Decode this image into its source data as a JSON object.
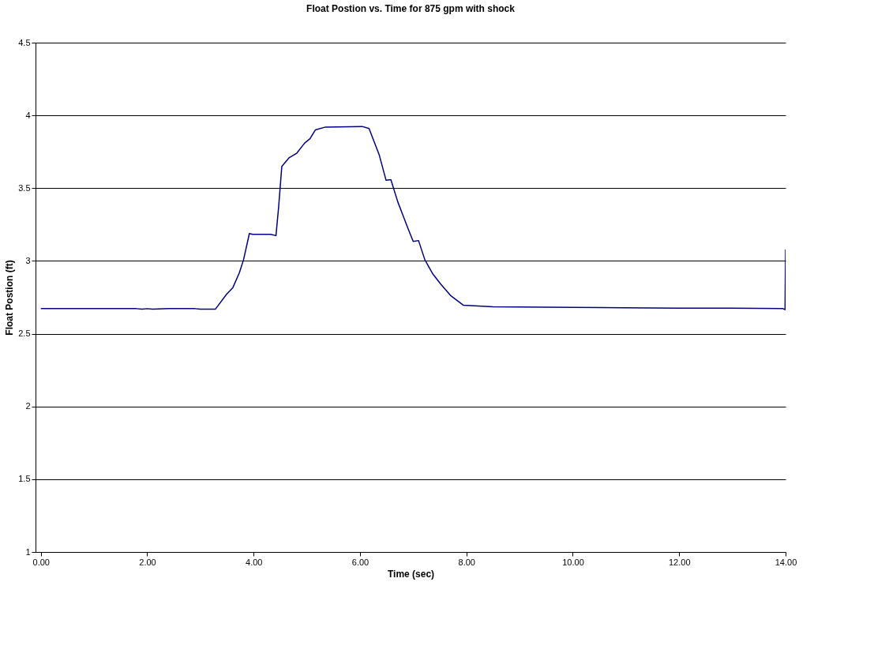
{
  "chart_data": {
    "type": "line",
    "title": "Float Postion vs. Time for 875 gpm with shock",
    "xlabel": "Time (sec)",
    "ylabel": "Float Postion (ft)",
    "xlim": [
      -0.1,
      14
    ],
    "xticks": [
      {
        "value": 0,
        "label": "0.00"
      },
      {
        "value": 2,
        "label": "2.00"
      },
      {
        "value": 4,
        "label": "4.00"
      },
      {
        "value": 6,
        "label": "6.00"
      },
      {
        "value": 8,
        "label": "8.00"
      },
      {
        "value": 10,
        "label": "10.00"
      },
      {
        "value": 12,
        "label": "12.00"
      },
      {
        "value": 14,
        "label": "14.00"
      }
    ],
    "ylim": [
      1,
      4.5
    ],
    "yticks": [
      1,
      1.5,
      2,
      2.5,
      3,
      3.5,
      4,
      4.5
    ],
    "grid": "y",
    "line_style": "solid",
    "marker": "none",
    "series": [
      {
        "color": "#000080",
        "x": [
          0,
          1.8,
          1.9,
          2.0,
          2.1,
          2.4,
          2.9,
          3.0,
          3.28,
          3.49,
          3.61,
          3.73,
          3.81,
          3.92,
          3.98,
          4.32,
          4.42,
          4.47,
          4.53,
          4.67,
          4.81,
          4.96,
          5.06,
          5.16,
          5.35,
          6.04,
          6.17,
          6.36,
          6.49,
          6.58,
          6.71,
          6.9,
          7.0,
          7.1,
          7.22,
          7.37,
          7.52,
          7.71,
          7.94,
          8.5,
          9.97,
          10.96,
          12.0,
          13.0,
          13.95,
          13.99,
          14.0
        ],
        "values": [
          2.672,
          2.672,
          2.668,
          2.672,
          2.668,
          2.672,
          2.672,
          2.668,
          2.668,
          2.77,
          2.817,
          2.917,
          3.007,
          3.188,
          3.183,
          3.183,
          3.174,
          3.37,
          3.65,
          3.71,
          3.74,
          3.81,
          3.84,
          3.9,
          3.92,
          3.924,
          3.91,
          3.73,
          3.554,
          3.558,
          3.406,
          3.225,
          3.134,
          3.14,
          3.007,
          2.91,
          2.84,
          2.76,
          2.696,
          2.685,
          2.681,
          2.678,
          2.675,
          2.675,
          2.672,
          2.665,
          3.08
        ]
      }
    ]
  }
}
